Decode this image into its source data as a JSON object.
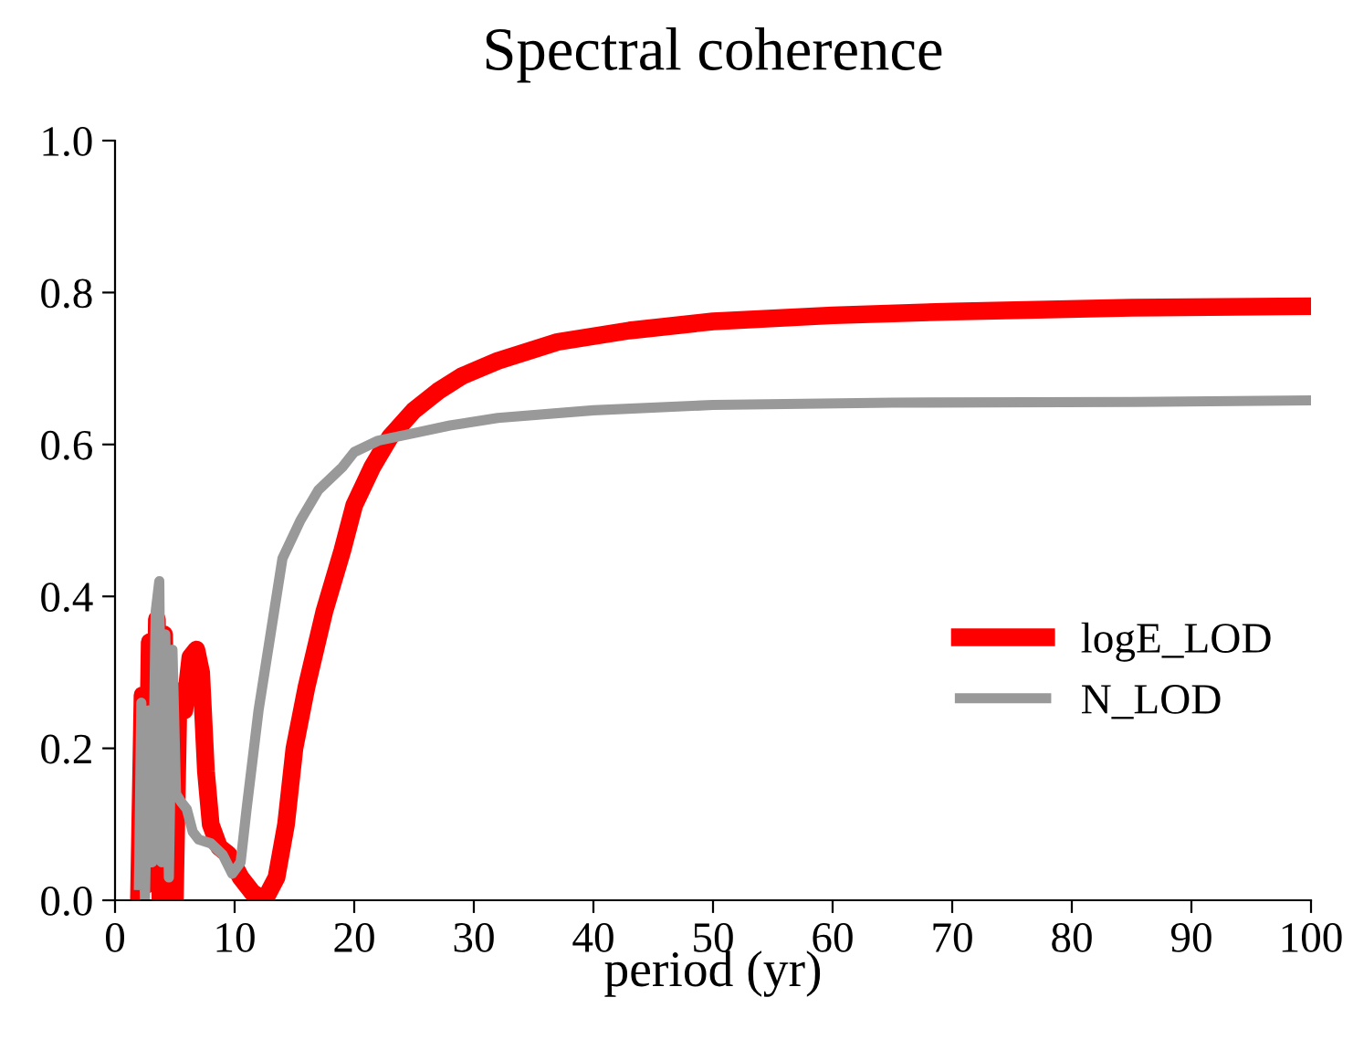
{
  "chart_data": {
    "type": "line",
    "title": "Spectral coherence",
    "xlabel": "period (yr)",
    "xlim": [
      0,
      100
    ],
    "ylim": [
      0,
      1.0
    ],
    "xticks": [
      0,
      10,
      20,
      30,
      40,
      50,
      60,
      70,
      80,
      90,
      100
    ],
    "yticks": [
      {
        "value": 0,
        "label": "0.0"
      },
      {
        "value": 0.2,
        "label": "0.2"
      },
      {
        "value": 0.4,
        "label": "0.4"
      },
      {
        "value": 0.6,
        "label": "0.6"
      },
      {
        "value": 0.8,
        "label": "0.8"
      },
      {
        "value": 1.0,
        "label": "1.0"
      }
    ],
    "grid": false,
    "legend": "right",
    "marker": "none",
    "line_style": "solid",
    "series": [
      {
        "name": "logE_LOD",
        "color": "#ff0000",
        "x": [
          2.0,
          2.3,
          2.6,
          2.9,
          3.2,
          3.5,
          3.8,
          4.1,
          4.4,
          4.7,
          5.0,
          5.3,
          5.8,
          6.3,
          6.8,
          7.2,
          7.6,
          8.0,
          8.7,
          9.5,
          10.5,
          11.5,
          12.5,
          13.5,
          14.3,
          15,
          16,
          17.5,
          19,
          20,
          21.5,
          23,
          25,
          27,
          29,
          32,
          37,
          43,
          50,
          60,
          70,
          85,
          100
        ],
        "values": [
          0.0,
          0.27,
          0.02,
          0.34,
          0.05,
          0.37,
          0.0,
          0.35,
          0.02,
          0.28,
          0.0,
          0.26,
          0.25,
          0.32,
          0.33,
          0.3,
          0.17,
          0.1,
          0.07,
          0.06,
          0.03,
          0.01,
          0.0,
          0.03,
          0.1,
          0.2,
          0.28,
          0.38,
          0.46,
          0.52,
          0.57,
          0.61,
          0.645,
          0.67,
          0.69,
          0.71,
          0.735,
          0.75,
          0.762,
          0.77,
          0.775,
          0.78,
          0.782
        ]
      },
      {
        "name": "N_LOD",
        "color": "#999999",
        "x": [
          2,
          2.2,
          2.5,
          2.8,
          3.1,
          3.4,
          3.7,
          3.9,
          4.2,
          4.5,
          4.8,
          5.1,
          5.5,
          6,
          6.5,
          7,
          8,
          9,
          9.8,
          10.5,
          11,
          12,
          13,
          14,
          15.5,
          17,
          19,
          20,
          22,
          25,
          28,
          32,
          40,
          50,
          65,
          85,
          100
        ],
        "values": [
          0.02,
          0.26,
          0.0,
          0.25,
          0.05,
          0.38,
          0.42,
          0.05,
          0.35,
          0.03,
          0.33,
          0.14,
          0.13,
          0.12,
          0.09,
          0.08,
          0.075,
          0.06,
          0.035,
          0.05,
          0.12,
          0.25,
          0.35,
          0.45,
          0.5,
          0.54,
          0.57,
          0.59,
          0.605,
          0.615,
          0.625,
          0.635,
          0.645,
          0.652,
          0.655,
          0.656,
          0.658
        ]
      }
    ]
  }
}
